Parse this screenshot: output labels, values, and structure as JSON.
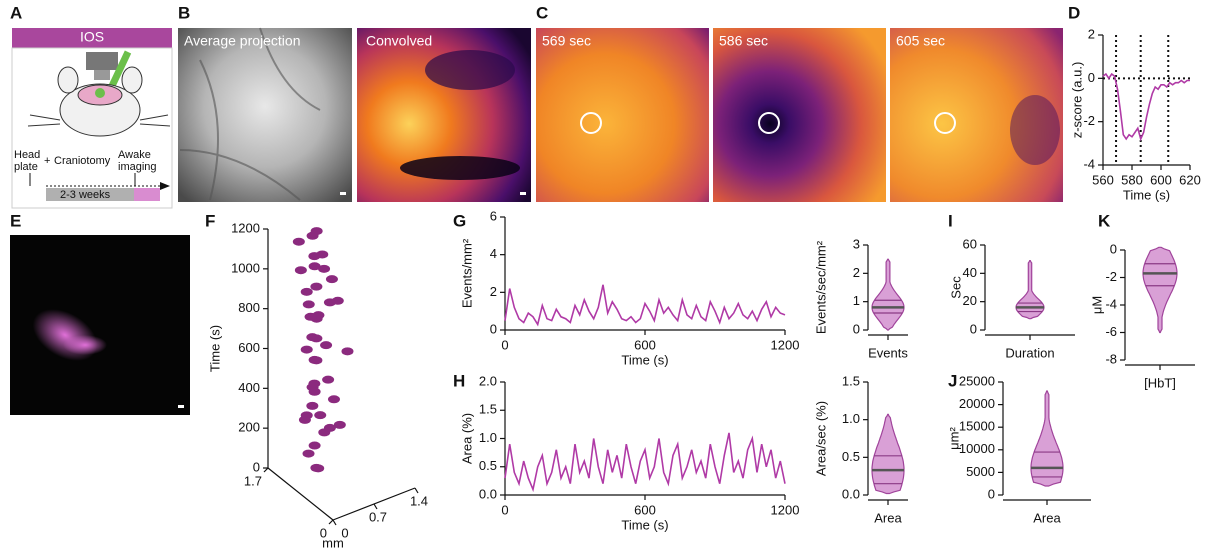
{
  "panel_labels": [
    "A",
    "B",
    "C",
    "D",
    "E",
    "F",
    "G",
    "H",
    "I",
    "J",
    "K"
  ],
  "panel_a": {
    "title": "IOS",
    "head_plate": [
      "Head",
      "plate"
    ],
    "plus": "+",
    "craniotomy": "Craniotomy",
    "awake_imaging": [
      "Awake",
      "imaging"
    ],
    "duration": "2-3 weeks"
  },
  "images": {
    "average": "Average projection",
    "convolved": "Convolved",
    "frames": [
      "569 sec",
      "586 sec",
      "605 sec"
    ]
  },
  "chart_data": [
    {
      "type": "line",
      "xlabel": "Time (s)",
      "ylabel": "z-score (a.u.)",
      "x": [
        560,
        562,
        564,
        566,
        568,
        570,
        572,
        574,
        576,
        578,
        580,
        582,
        584,
        586,
        588,
        590,
        592,
        594,
        596,
        598,
        600,
        602,
        604,
        606,
        608,
        610,
        612,
        614,
        616,
        618,
        620
      ],
      "series": [
        {
          "color": "#b03aa6",
          "values": [
            0.1,
            0.2,
            0,
            0.2,
            0.1,
            -0.5,
            -1.5,
            -2.6,
            -2.8,
            -2.6,
            -2.7,
            -2.5,
            -2.3,
            -2.8,
            -2.5,
            -1.8,
            -1.2,
            -0.7,
            -0.4,
            -0.5,
            -0.3,
            -0.3,
            -0.4,
            -0.2,
            -0.3,
            -0.2,
            -0.2,
            -0.1,
            -0.2,
            -0.1,
            -0.1
          ]
        }
      ],
      "vlines": [
        569,
        586,
        605
      ],
      "hline": 0,
      "xlim": [
        560,
        620
      ],
      "xticks": [
        560,
        580,
        600,
        620
      ],
      "ylim": [
        -4,
        2
      ],
      "yticks": [
        -4,
        -2,
        0,
        2
      ]
    },
    {
      "type": "scatter3d",
      "zlabel": "Time (s)",
      "xylabel": "mm",
      "color": "#8b2a7e",
      "x": [
        1.2,
        1.0,
        1.4,
        1.1,
        1.3,
        1.2,
        1.5,
        1.0,
        1.3,
        1.1,
        1.2,
        1.4,
        1.0,
        1.3,
        1.2,
        1.1,
        1.4,
        1.2,
        1.0,
        1.3,
        1.1,
        1.2,
        1.5,
        1.0,
        1.3,
        1.2,
        1.4,
        1.1,
        1.0,
        1.3,
        1.2,
        1.1,
        1.4,
        1.3,
        1.0,
        1.2,
        1.1,
        1.5,
        1.3,
        1.2
      ],
      "y": [
        0.5,
        0.4,
        0.6,
        0.3,
        0.7,
        0.9,
        0.5,
        0.6,
        0.4,
        0.5,
        0.8,
        0.6,
        0.3,
        0.5,
        0.7,
        0.4,
        0.6,
        0.5,
        0.9,
        0.4,
        0.6,
        0.5,
        0.7,
        0.3,
        0.6,
        0.4,
        0.5,
        0.8,
        0.6,
        0.4,
        0.5,
        0.7,
        0.6,
        0.3,
        0.5,
        0.6,
        0.4,
        0.7,
        0.5,
        0.2
      ],
      "z": [
        20,
        60,
        90,
        130,
        160,
        190,
        215,
        240,
        280,
        300,
        330,
        360,
        385,
        410,
        440,
        470,
        520,
        560,
        590,
        610,
        640,
        670,
        700,
        730,
        760,
        790,
        810,
        840,
        870,
        900,
        930,
        960,
        990,
        1020,
        1050,
        1080,
        1110,
        1140,
        1170,
        1190
      ],
      "xlim": [
        0,
        1.7
      ],
      "xticks": [
        0,
        1.7
      ],
      "ylim": [
        0,
        1.4
      ],
      "yticks": [
        0,
        0.7,
        1.4
      ],
      "zlim": [
        0,
        1200
      ],
      "zticks": [
        0,
        200,
        400,
        600,
        800,
        1000,
        1200
      ]
    },
    {
      "type": "line",
      "xlabel": "Time (s)",
      "ylabel": "Events/mm²",
      "x": [
        0,
        20,
        40,
        60,
        80,
        100,
        120,
        140,
        160,
        180,
        200,
        220,
        240,
        260,
        280,
        300,
        320,
        340,
        360,
        380,
        400,
        420,
        440,
        460,
        480,
        500,
        520,
        540,
        560,
        580,
        600,
        620,
        640,
        660,
        680,
        700,
        720,
        740,
        760,
        780,
        800,
        820,
        840,
        860,
        880,
        900,
        920,
        940,
        960,
        980,
        1000,
        1020,
        1040,
        1060,
        1080,
        1100,
        1120,
        1140,
        1160,
        1180,
        1200
      ],
      "series": [
        {
          "color": "#b03aa6",
          "values": [
            0.5,
            2.2,
            1.2,
            0.6,
            0.4,
            0.9,
            0.7,
            0.3,
            1.3,
            0.6,
            0.5,
            1.1,
            0.7,
            0.6,
            0.4,
            1.3,
            0.8,
            1.6,
            1.0,
            0.6,
            1.2,
            2.4,
            0.9,
            1.5,
            1.1,
            0.6,
            0.5,
            0.7,
            0.4,
            0.6,
            1.4,
            1.0,
            0.5,
            1.6,
            0.9,
            1.2,
            0.8,
            0.5,
            1.6,
            0.8,
            0.6,
            1.3,
            0.7,
            0.5,
            1.5,
            1.0,
            0.4,
            1.2,
            0.6,
            0.9,
            1.4,
            0.8,
            0.6,
            1.0,
            0.5,
            1.1,
            1.5,
            0.7,
            1.2,
            0.9,
            0.8
          ]
        }
      ],
      "xlim": [
        0,
        1200
      ],
      "xticks": [
        0,
        600,
        1200
      ],
      "ylim": [
        0,
        6
      ],
      "yticks": [
        0,
        2,
        4,
        6
      ]
    },
    {
      "type": "violin",
      "category": "Events",
      "ylabel": "Events/sec/mm²",
      "color": "#d9a0d6",
      "min": 0,
      "q1": 0.6,
      "median": 0.8,
      "q3": 1.05,
      "max": 2.5,
      "ylim": [
        0,
        3
      ],
      "yticks": [
        0,
        1,
        2,
        3
      ]
    },
    {
      "type": "line",
      "xlabel": "Time (s)",
      "ylabel": "Area  (%)",
      "x": [
        0,
        20,
        40,
        60,
        80,
        100,
        120,
        140,
        160,
        180,
        200,
        220,
        240,
        260,
        280,
        300,
        320,
        340,
        360,
        380,
        400,
        420,
        440,
        460,
        480,
        500,
        520,
        540,
        560,
        580,
        600,
        620,
        640,
        660,
        680,
        700,
        720,
        740,
        760,
        780,
        800,
        820,
        840,
        860,
        880,
        900,
        920,
        940,
        960,
        980,
        1000,
        1020,
        1040,
        1060,
        1080,
        1100,
        1120,
        1140,
        1160,
        1180,
        1200
      ],
      "series": [
        {
          "color": "#b03aa6",
          "values": [
            0.3,
            0.9,
            0.4,
            0.2,
            0.6,
            0.3,
            0.1,
            0.5,
            0.7,
            0.2,
            0.4,
            0.8,
            0.3,
            0.5,
            0.2,
            0.9,
            0.4,
            0.6,
            0.3,
            1.0,
            0.5,
            0.2,
            0.8,
            0.4,
            0.7,
            0.3,
            0.9,
            0.5,
            0.2,
            0.6,
            0.8,
            0.3,
            0.5,
            1.0,
            0.4,
            0.2,
            0.7,
            0.9,
            0.3,
            0.5,
            0.8,
            0.4,
            0.6,
            0.3,
            0.9,
            0.5,
            0.2,
            0.7,
            1.1,
            0.4,
            0.6,
            0.3,
            0.8,
            1.0,
            0.4,
            0.9,
            0.5,
            0.8,
            0.3,
            0.6,
            0.2
          ]
        }
      ],
      "xlim": [
        0,
        1200
      ],
      "xticks": [
        0,
        600,
        1200
      ],
      "ylim": [
        0,
        2
      ],
      "yticks": [
        {
          "value": 0,
          "label": "0.0"
        },
        0.5,
        {
          "value": 1,
          "label": "1.0"
        },
        1.5,
        {
          "value": 2,
          "label": "2.0"
        }
      ]
    },
    {
      "type": "violin",
      "category": "Area",
      "ylabel": "Area/sec (%)",
      "color": "#d9a0d6",
      "min": 0.02,
      "q1": 0.15,
      "median": 0.33,
      "q3": 0.52,
      "max": 1.07,
      "ylim": [
        0,
        1.5
      ],
      "yticks": [
        {
          "value": 0,
          "label": "0.0"
        },
        0.5,
        {
          "value": 1,
          "label": "1.0"
        },
        1.5
      ]
    },
    {
      "type": "violin",
      "category": "Duration",
      "ylabel": "Sec",
      "color": "#d9a0d6",
      "min": 8,
      "q1": 13,
      "median": 16,
      "q3": 19,
      "max": 49,
      "ylim": [
        0,
        60
      ],
      "yticks": [
        0,
        20,
        40,
        60
      ]
    },
    {
      "type": "violin",
      "category": "Area",
      "ylabel": "μm²",
      "color": "#d9a0d6",
      "min": 2000,
      "q1": 4000,
      "median": 6000,
      "q3": 9500,
      "max": 23000,
      "ylim": [
        0,
        25000
      ],
      "yticks": [
        0,
        5000,
        10000,
        15000,
        20000,
        25000
      ]
    },
    {
      "type": "violin",
      "category": "[HbT]",
      "ylabel": "μM",
      "color": "#d9a0d6",
      "min": -6,
      "q1": -2.6,
      "median": -1.7,
      "q3": -1,
      "max": 0.2,
      "ylim": [
        -8,
        0
      ],
      "yticks": [
        -8,
        -6,
        -4,
        -2,
        0
      ]
    }
  ]
}
